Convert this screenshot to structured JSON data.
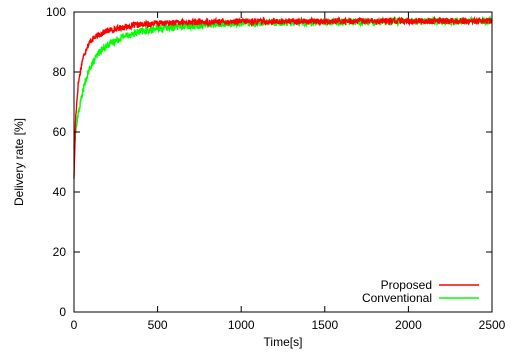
{
  "chart_data": {
    "type": "line",
    "title": "",
    "xlabel": "Time[s]",
    "ylabel": "Delivery rate [%]",
    "xlim": [
      0,
      2500
    ],
    "ylim": [
      0,
      100
    ],
    "xticks": [
      0,
      500,
      1000,
      1500,
      2000,
      2500
    ],
    "yticks": [
      0,
      20,
      40,
      60,
      80,
      100
    ],
    "legend_position": "bottom-right",
    "grid": false,
    "series": [
      {
        "name": "Proposed",
        "color": "#ff0000",
        "x": [
          0,
          10,
          25,
          50,
          75,
          100,
          150,
          200,
          300,
          400,
          500,
          700,
          1000,
          1500,
          2000,
          2500
        ],
        "y": [
          45,
          65,
          76,
          84,
          88,
          90.5,
          92.5,
          93.8,
          95,
          95.8,
          96.2,
          96.6,
          96.8,
          96.9,
          97,
          97
        ],
        "noise": 1.0
      },
      {
        "name": "Conventional",
        "color": "#00ff00",
        "x": [
          0,
          10,
          25,
          50,
          75,
          100,
          150,
          200,
          300,
          400,
          500,
          700,
          1000,
          1500,
          2000,
          2500
        ],
        "y": [
          55,
          60,
          66,
          73,
          78,
          82,
          86.5,
          89,
          92,
          93.5,
          94.5,
          95.6,
          96.3,
          96.7,
          96.9,
          97
        ],
        "noise": 1.2
      }
    ]
  }
}
